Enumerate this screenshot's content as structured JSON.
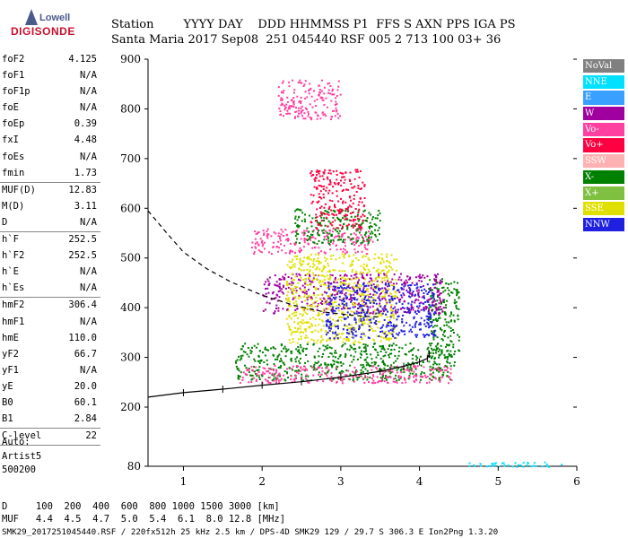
{
  "logo": {
    "line1": "Lowell",
    "line2": "DIGISONDE"
  },
  "header": {
    "row1": "Station        YYYY DAY    DDD HHMMSS P1  FFS S AXN PPS IGA PS",
    "row2": "Santa Maria 2017 Sep08  251 045440 RSF 005 2 713 100 03+ 36"
  },
  "params_block1": [
    {
      "k": "foF2",
      "v": "4.125"
    },
    {
      "k": "foF1",
      "v": "N/A"
    },
    {
      "k": "foF1p",
      "v": "N/A"
    },
    {
      "k": "foE",
      "v": "N/A"
    },
    {
      "k": "foEp",
      "v": "0.39"
    },
    {
      "k": "fxI",
      "v": "4.48"
    },
    {
      "k": "foEs",
      "v": "N/A"
    },
    {
      "k": "fmin",
      "v": "1.73"
    }
  ],
  "params_block2": [
    {
      "k": "MUF(D)",
      "v": "12.83"
    },
    {
      "k": "M(D)",
      "v": "3.11"
    },
    {
      "k": "D",
      "v": "N/A"
    }
  ],
  "params_block3": [
    {
      "k": "h`F",
      "v": "252.5"
    },
    {
      "k": "h`F2",
      "v": "252.5"
    },
    {
      "k": "h`E",
      "v": "N/A"
    },
    {
      "k": "h`Es",
      "v": "N/A"
    }
  ],
  "params_block4": [
    {
      "k": "hmF2",
      "v": "306.4"
    },
    {
      "k": "hmF1",
      "v": "N/A"
    },
    {
      "k": "hmE",
      "v": "110.0"
    },
    {
      "k": "yF2",
      "v": "66.7"
    },
    {
      "k": "yF1",
      "v": "N/A"
    },
    {
      "k": "yE",
      "v": "20.0"
    },
    {
      "k": "B0",
      "v": "60.1"
    },
    {
      "k": "B1",
      "v": "2.84"
    }
  ],
  "params_block5": [
    {
      "k": "C-level",
      "v": "22"
    }
  ],
  "auto": {
    "label": "Auto:",
    "name": "Artist5",
    "version": "500200"
  },
  "legend": [
    {
      "label": "NoVal",
      "color": "#808080"
    },
    {
      "label": "NNE",
      "color": "#00e0ff"
    },
    {
      "label": "E",
      "color": "#3aa0ff"
    },
    {
      "label": "W",
      "color": "#a000a0"
    },
    {
      "label": "Vo-",
      "color": "#ff40a0"
    },
    {
      "label": "Vo+",
      "color": "#ff0040"
    },
    {
      "label": "SSW",
      "color": "#ffb0b0"
    },
    {
      "label": "X-",
      "color": "#008000"
    },
    {
      "label": "X+",
      "color": "#80c040"
    },
    {
      "label": "SSE",
      "color": "#e0e000"
    },
    {
      "label": "NNW",
      "color": "#2020e0"
    }
  ],
  "footer": {
    "row1": "D     100  200  400  600  800 1000 1500 3000 [km]",
    "row2": "MUF   4.4  4.5  4.7  5.0  5.4  6.1  8.0 12.8 [MHz]",
    "row3": "SMK29_2017251045440.RSF / 220fx512h 25 kHz 2.5 km / DPS-4D SMK29 129 / 29.7 S 306.3 E Ion2Png 1.3.20"
  },
  "chart_data": {
    "type": "scatter",
    "title": "",
    "xlabel": "",
    "ylabel": "",
    "xlim": [
      0.55,
      6.0
    ],
    "ylim": [
      80,
      900
    ],
    "x_ticks": [
      1,
      2,
      3,
      4,
      5,
      6
    ],
    "y_ticks": [
      80,
      200,
      300,
      400,
      500,
      600,
      700,
      800,
      900
    ],
    "grid": false,
    "legend_position": "right",
    "series": [
      {
        "name": "profile_solid",
        "style": "solid",
        "points": [
          [
            0.55,
            220
          ],
          [
            1.0,
            229
          ],
          [
            1.5,
            236
          ],
          [
            2.0,
            244
          ],
          [
            2.5,
            251
          ],
          [
            3.0,
            260
          ],
          [
            3.5,
            272
          ],
          [
            3.8,
            282
          ],
          [
            4.0,
            291
          ],
          [
            4.1,
            298
          ],
          [
            4.125,
            306.4
          ]
        ]
      },
      {
        "name": "profile_dashed",
        "style": "dashed",
        "points": [
          [
            0.55,
            595
          ],
          [
            0.8,
            548
          ],
          [
            1.0,
            512
          ],
          [
            1.3,
            478
          ],
          [
            1.6,
            452
          ],
          [
            2.0,
            425
          ],
          [
            2.4,
            405
          ],
          [
            2.8,
            391
          ],
          [
            3.2,
            384
          ],
          [
            3.5,
            381
          ]
        ]
      }
    ],
    "scatter_clusters": [
      {
        "legend": "X-",
        "x": [
          1.65,
          4.45
        ],
        "y": [
          255,
          330
        ]
      },
      {
        "legend": "Vo-",
        "x": [
          1.7,
          4.4
        ],
        "y": [
          250,
          285
        ]
      },
      {
        "legend": "X-",
        "x": [
          4.1,
          4.5
        ],
        "y": [
          300,
          460
        ]
      },
      {
        "legend": "W",
        "x": [
          2.0,
          4.3
        ],
        "y": [
          390,
          470
        ]
      },
      {
        "legend": "SSE",
        "x": [
          2.3,
          3.7
        ],
        "y": [
          330,
          510
        ]
      },
      {
        "legend": "Vo-",
        "x": [
          1.85,
          3.4
        ],
        "y": [
          510,
          560
        ]
      },
      {
        "legend": "X-",
        "x": [
          2.4,
          3.5
        ],
        "y": [
          530,
          600
        ]
      },
      {
        "legend": "NNW",
        "x": [
          2.8,
          4.2
        ],
        "y": [
          340,
          450
        ]
      },
      {
        "legend": "Vo+",
        "x": [
          2.6,
          3.3
        ],
        "y": [
          560,
          680
        ]
      },
      {
        "legend": "Vo-",
        "x": [
          2.2,
          3.0
        ],
        "y": [
          780,
          860
        ]
      },
      {
        "legend": "NNE",
        "x": [
          4.6,
          5.8
        ],
        "y": [
          80,
          90
        ]
      }
    ]
  }
}
